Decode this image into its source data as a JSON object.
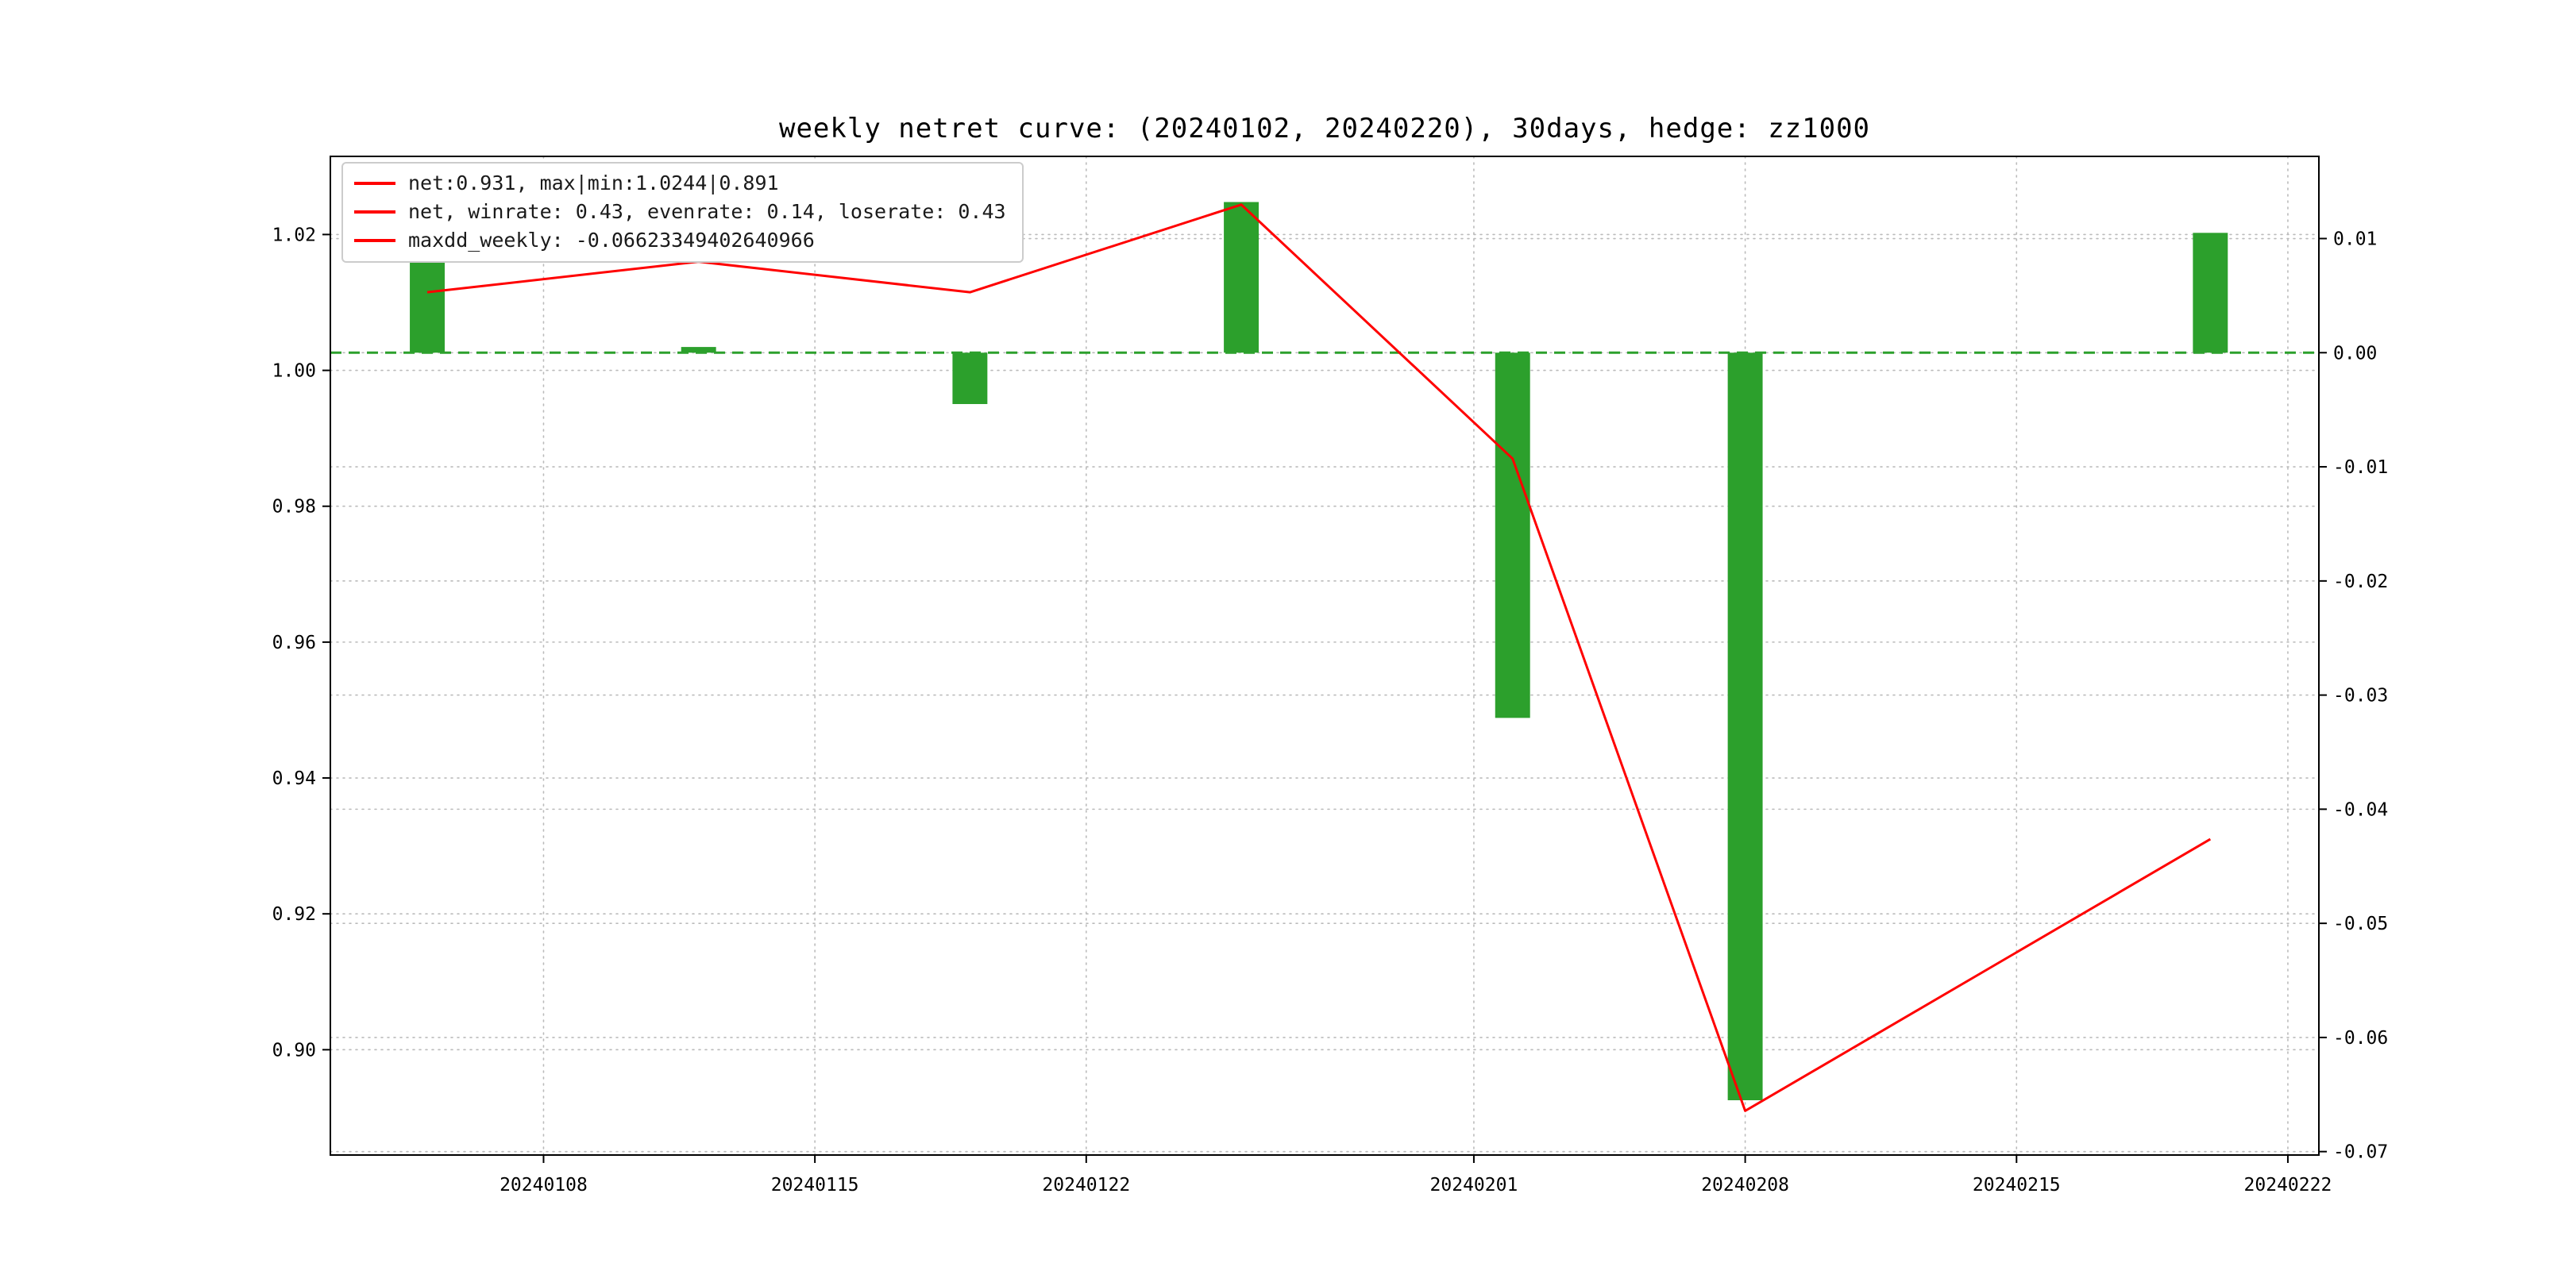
{
  "figure": {
    "background": "#ffffff"
  },
  "theme": {
    "line_color": "#ff0000",
    "bar_color": "#2ca02c",
    "zero_line_color": "#2ca02c",
    "grid_color": "#bbbbbb",
    "spine_color": "#000000",
    "tick_label_color": "#000000"
  },
  "chart_data": {
    "type": "line+bar",
    "title": "weekly netret curve: (20240102, 20240220), 30days, hedge: zz1000",
    "x_axis": {
      "epoch": "20240102",
      "range_days": [
        0.5,
        51.8
      ],
      "tick_days": [
        6,
        13,
        20,
        30,
        37,
        44,
        51
      ],
      "tick_labels": [
        "20240108",
        "20240115",
        "20240122",
        "20240201",
        "20240208",
        "20240215",
        "20240222"
      ]
    },
    "left_axis": {
      "range": [
        0.8845,
        1.0315
      ],
      "ticks": [
        0.9,
        0.92,
        0.94,
        0.96,
        0.98,
        1.0,
        1.02
      ],
      "tick_labels": [
        "0.90",
        "0.92",
        "0.94",
        "0.96",
        "0.98",
        "1.00",
        "1.02"
      ]
    },
    "right_axis": {
      "range": [
        -0.0703,
        0.0172
      ],
      "ticks": [
        0.01,
        0.0,
        -0.01,
        -0.02,
        -0.03,
        -0.04,
        -0.05,
        -0.06,
        -0.07
      ],
      "tick_labels": [
        "0.01",
        "0.00",
        "-0.01",
        "-0.02",
        "-0.03",
        "-0.04",
        "-0.05",
        "-0.06",
        "-0.07"
      ]
    },
    "points": {
      "dates": [
        "20240105",
        "20240112",
        "20240119",
        "20240126",
        "20240202",
        "20240208",
        "20240220"
      ],
      "days": [
        3,
        10,
        17,
        24,
        31,
        37,
        49
      ]
    },
    "line_series": {
      "name": "net",
      "axis": "left",
      "color": "#ff0000",
      "values": [
        1.0115,
        1.016,
        1.0115,
        1.0244,
        0.987,
        0.891,
        0.931
      ]
    },
    "bar_series": {
      "name": "weekly_return",
      "axis": "right",
      "color": "#2ca02c",
      "bar_width_days": 0.9,
      "values": [
        0.008,
        0.0005,
        -0.0045,
        0.0132,
        -0.032,
        -0.0655,
        0.0105
      ]
    },
    "zero_line": {
      "axis": "right",
      "value": 0.0,
      "style": "dashed",
      "color": "#2ca02c"
    },
    "legend": {
      "position": "upper-left",
      "entries": [
        {
          "label": "net:0.931, max|min:1.0244|0.891",
          "color": "#ff0000",
          "marker": "line"
        },
        {
          "label": "net, winrate: 0.43, evenrate: 0.14, loserate: 0.43",
          "color": "#ff0000",
          "marker": "line"
        },
        {
          "label": "maxdd_weekly: -0.06623349402640966",
          "color": "#ff0000",
          "marker": "line"
        }
      ]
    },
    "stats": {
      "net_final": 0.931,
      "net_max": 1.0244,
      "net_min": 0.891,
      "winrate": 0.43,
      "evenrate": 0.14,
      "loserate": 0.43,
      "maxdd_weekly": -0.06623349402640966
    }
  }
}
